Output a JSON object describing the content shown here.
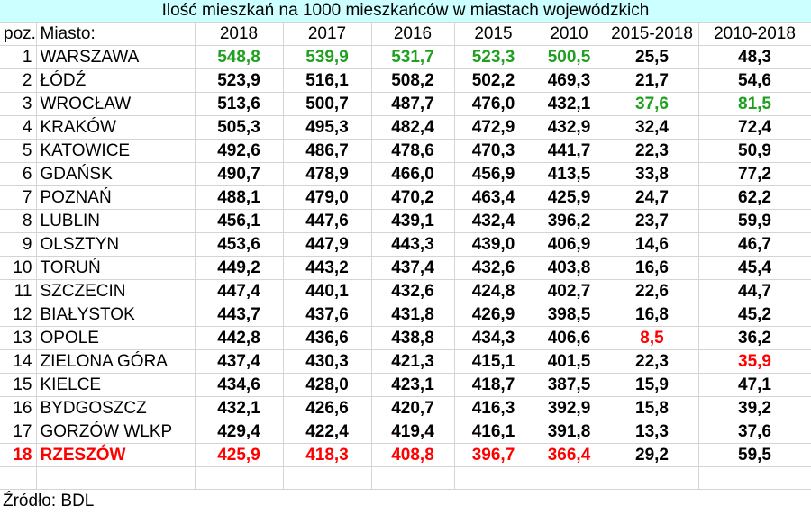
{
  "title": "Ilość mieszkań na 1000 mieszkańców w miastach wojewódzkich",
  "headers": [
    "poz.",
    "Miasto:",
    "2018",
    "2017",
    "2016",
    "2015",
    "2010",
    "2015-2018",
    "2010-2018"
  ],
  "rows": [
    {
      "pos": "1",
      "city": "WARSZAWA",
      "vals": [
        "548,8",
        "539,9",
        "531,7",
        "523,3",
        "500,5",
        "25,5",
        "48,3"
      ]
    },
    {
      "pos": "2",
      "city": "ŁÓDŹ",
      "vals": [
        "523,9",
        "516,1",
        "508,2",
        "502,2",
        "469,3",
        "21,7",
        "54,6"
      ]
    },
    {
      "pos": "3",
      "city": "WROCŁAW",
      "vals": [
        "513,6",
        "500,7",
        "487,7",
        "476,0",
        "432,1",
        "37,6",
        "81,5"
      ]
    },
    {
      "pos": "4",
      "city": "KRAKÓW",
      "vals": [
        "505,3",
        "495,3",
        "482,4",
        "472,9",
        "432,9",
        "32,4",
        "72,4"
      ]
    },
    {
      "pos": "5",
      "city": "KATOWICE",
      "vals": [
        "492,6",
        "486,7",
        "478,6",
        "470,3",
        "441,7",
        "22,3",
        "50,9"
      ]
    },
    {
      "pos": "6",
      "city": "GDAŃSK",
      "vals": [
        "490,7",
        "478,9",
        "466,0",
        "456,9",
        "413,5",
        "33,8",
        "77,2"
      ]
    },
    {
      "pos": "7",
      "city": "POZNAŃ",
      "vals": [
        "488,1",
        "479,0",
        "470,2",
        "463,4",
        "425,9",
        "24,7",
        "62,2"
      ]
    },
    {
      "pos": "8",
      "city": "LUBLIN",
      "vals": [
        "456,1",
        "447,6",
        "439,1",
        "432,4",
        "396,2",
        "23,7",
        "59,9"
      ]
    },
    {
      "pos": "9",
      "city": "OLSZTYN",
      "vals": [
        "453,6",
        "447,9",
        "443,3",
        "439,0",
        "406,9",
        "14,6",
        "46,7"
      ]
    },
    {
      "pos": "10",
      "city": "TORUŃ",
      "vals": [
        "449,2",
        "443,2",
        "437,4",
        "432,6",
        "403,8",
        "16,6",
        "45,4"
      ]
    },
    {
      "pos": "11",
      "city": "SZCZECIN",
      "vals": [
        "447,4",
        "440,1",
        "432,6",
        "424,8",
        "402,7",
        "22,6",
        "44,7"
      ]
    },
    {
      "pos": "12",
      "city": "BIAŁYSTOK",
      "vals": [
        "443,7",
        "437,6",
        "431,8",
        "426,9",
        "398,5",
        "16,8",
        "45,2"
      ]
    },
    {
      "pos": "13",
      "city": "OPOLE",
      "vals": [
        "442,8",
        "436,6",
        "438,8",
        "434,3",
        "406,6",
        "8,5",
        "36,2"
      ]
    },
    {
      "pos": "14",
      "city": "ZIELONA GÓRA",
      "vals": [
        "437,4",
        "430,3",
        "421,3",
        "415,1",
        "401,5",
        "22,3",
        "35,9"
      ]
    },
    {
      "pos": "15",
      "city": "KIELCE",
      "vals": [
        "434,6",
        "428,0",
        "423,1",
        "418,7",
        "387,5",
        "15,9",
        "47,1"
      ]
    },
    {
      "pos": "16",
      "city": "BYDGOSZCZ",
      "vals": [
        "432,1",
        "426,6",
        "420,7",
        "416,3",
        "392,9",
        "15,8",
        "39,2"
      ]
    },
    {
      "pos": "17",
      "city": "GORZÓW WLKP",
      "vals": [
        "429,4",
        "422,4",
        "419,4",
        "416,1",
        "391,8",
        "13,3",
        "37,6"
      ]
    },
    {
      "pos": "18",
      "city": "RZESZÓW",
      "vals": [
        "425,9",
        "418,3",
        "408,8",
        "396,7",
        "366,4",
        "29,2",
        "59,5"
      ]
    }
  ],
  "highlights": {
    "green": [
      [
        0,
        0
      ],
      [
        0,
        1
      ],
      [
        0,
        2
      ],
      [
        0,
        3
      ],
      [
        0,
        4
      ],
      [
        2,
        5
      ],
      [
        2,
        6
      ]
    ],
    "red": [
      [
        12,
        5
      ],
      [
        13,
        6
      ],
      [
        17,
        0
      ],
      [
        17,
        1
      ],
      [
        17,
        2
      ],
      [
        17,
        3
      ],
      [
        17,
        4
      ]
    ],
    "red_row_label": 17
  },
  "colors": {
    "green": "#1fa01f",
    "red": "#ff0000",
    "title_bg": "#ccffff",
    "grid": "#d4d4d4"
  },
  "source": "Źródło: BDL"
}
